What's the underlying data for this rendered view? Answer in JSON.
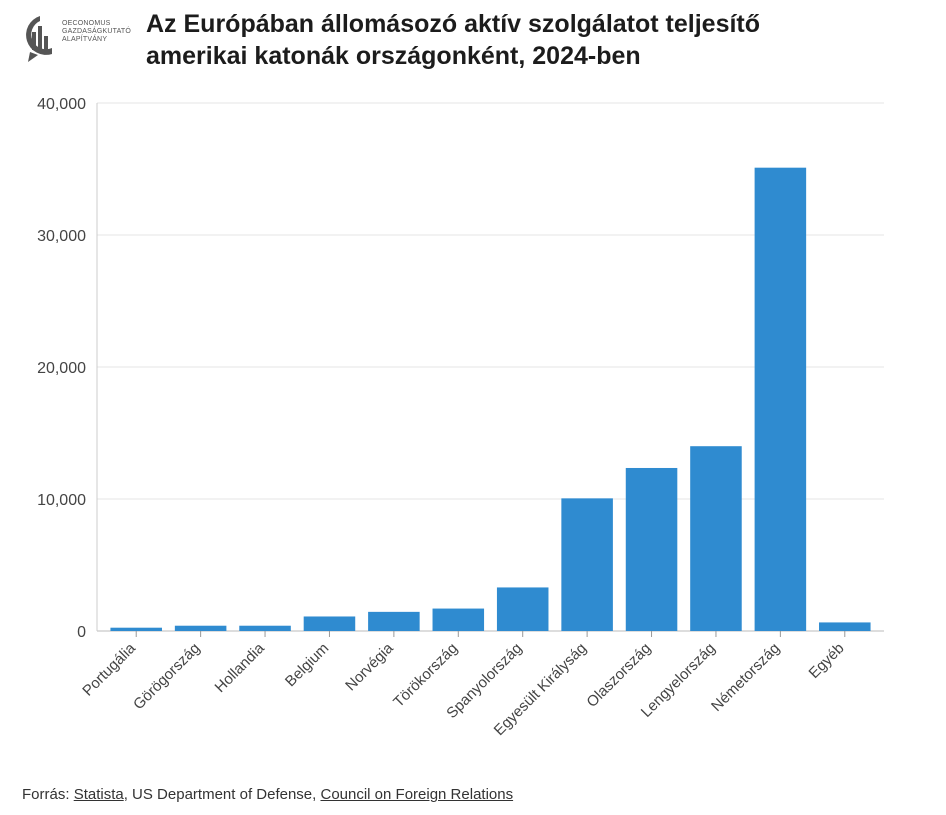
{
  "header": {
    "title_line1": "Az Európában állomásozó aktív szolgálatot teljesítő",
    "title_line2": "amerikai katonák országonként, 2024-ben",
    "logo_line1": "OECONOMUS",
    "logo_line2": "GAZDASÁGKUTATÓ",
    "logo_line3": "ALAPÍTVÁNY"
  },
  "chart_data": {
    "type": "bar",
    "title": "Az Európában állomásozó aktív szolgálatot teljesítő amerikai katonák országonként, 2024-ben",
    "categories": [
      "Portugália",
      "Görögország",
      "Hollandia",
      "Belgium",
      "Norvégia",
      "Törökország",
      "Spanyolország",
      "Egyesült Királyság",
      "Olaszország",
      "Lengyelország",
      "Németország",
      "Egyéb"
    ],
    "values": [
      250,
      400,
      400,
      1100,
      1450,
      1700,
      3300,
      10050,
      12350,
      14000,
      35100,
      650
    ],
    "yticks": [
      "0",
      "10,000",
      "20,000",
      "30,000",
      "40,000"
    ],
    "ylim": [
      0,
      40000
    ],
    "xlabel": "",
    "ylabel": "",
    "bar_color": "#2f8bd0",
    "grid": true
  },
  "footer": {
    "source_prefix": "Forrás: ",
    "source_link1": "Statista",
    "source_middle": ", US Department of Defense, ",
    "source_link2": "Council on Foreign Relations"
  }
}
